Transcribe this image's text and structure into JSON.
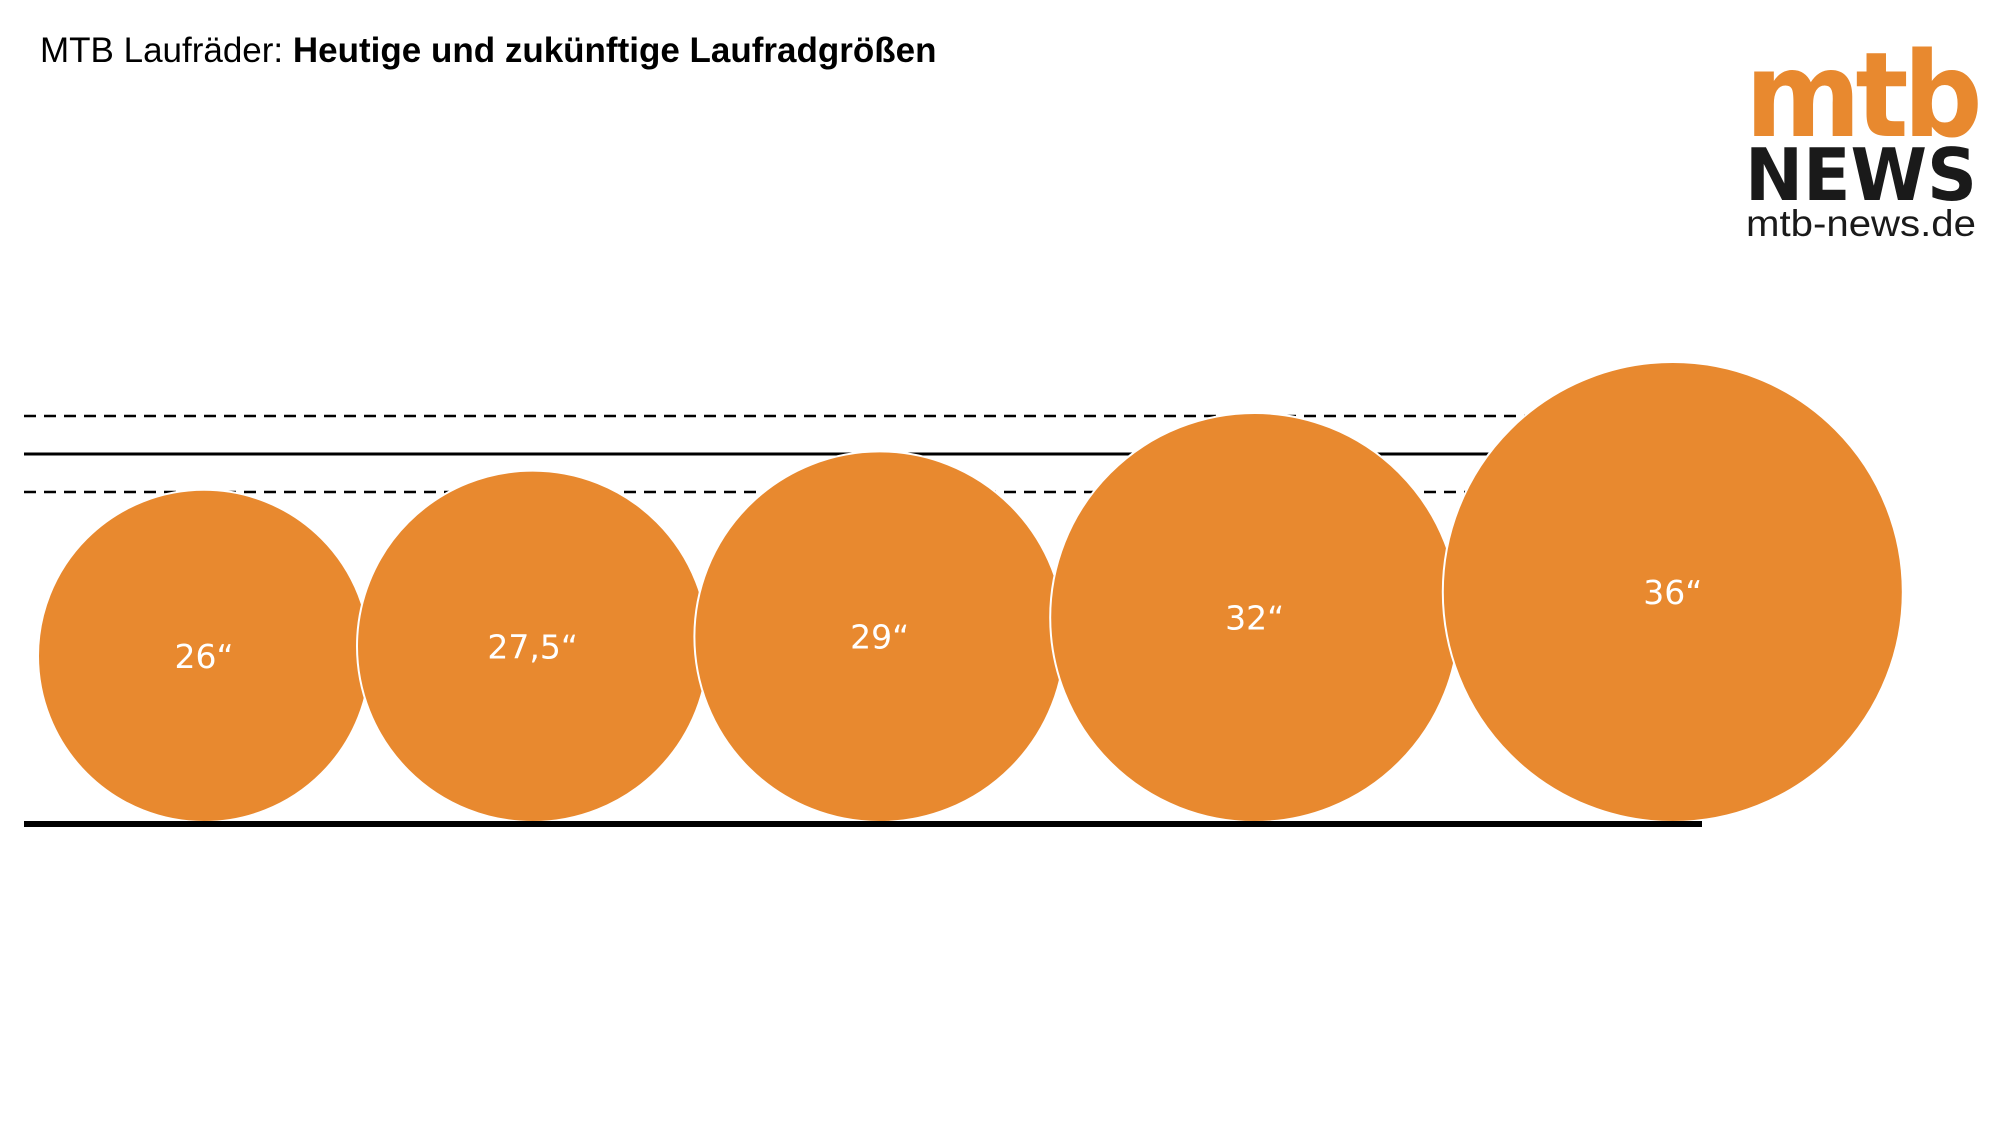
{
  "title": {
    "prefix": "MTB Laufräder: ",
    "bold": "Heutige und zukünftige Laufradgrößen"
  },
  "logo": {
    "top_text": "mtb",
    "middle_text": "NEWS",
    "bottom_text": "mtb-news.de",
    "orange": "#E8892F",
    "black": "#1a1a1a"
  },
  "colors": {
    "wheel_fill": "#E8892F",
    "wheel_stroke": "#ffffff",
    "line": "#000000"
  },
  "wheels": [
    {
      "label": "26“",
      "size_inch": 26
    },
    {
      "label": "27,5“",
      "size_inch": 27.5
    },
    {
      "label": "29“",
      "size_inch": 29
    },
    {
      "label": "32“",
      "size_inch": 32
    },
    {
      "label": "36“",
      "size_inch": 36
    }
  ]
}
